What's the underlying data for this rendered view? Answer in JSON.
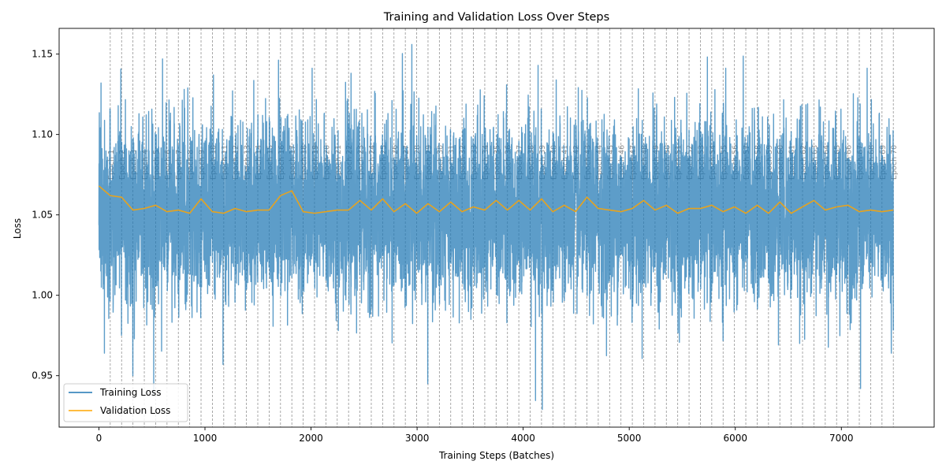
{
  "chart_data": {
    "type": "line",
    "title": "Training and Validation Loss Over Steps",
    "xlabel": "Training Steps (Batches)",
    "ylabel": "Loss",
    "xlim": [
      -375,
      7875
    ],
    "ylim": [
      0.918,
      1.166
    ],
    "x_ticks": [
      0,
      1000,
      2000,
      3000,
      4000,
      5000,
      6000,
      7000
    ],
    "y_ticks": [
      0.95,
      1.0,
      1.05,
      1.1,
      1.15
    ],
    "y_tick_labels": [
      "0.95",
      "1.00",
      "1.05",
      "1.10",
      "1.15"
    ],
    "legend_position": "lower-left",
    "grid": false,
    "epoch_boundaries": {
      "steps_per_epoch": 107,
      "count": 70,
      "label_prefix": "Epoch",
      "line_color": "#808080"
    },
    "series": [
      {
        "name": "Training Loss",
        "color": "#1f77b4",
        "kind": "noisy-line",
        "x_range": [
          0,
          7490
        ],
        "points_approx": 7490,
        "mean": 1.052,
        "min": 0.929,
        "max": 1.156,
        "notable_points": [
          {
            "x": 20,
            "y": 1.132
          },
          {
            "x": 40,
            "y": 1.004
          },
          {
            "x": 320,
            "y": 0.95
          },
          {
            "x": 600,
            "y": 1.147
          },
          {
            "x": 1080,
            "y": 1.137
          },
          {
            "x": 1170,
            "y": 0.957
          },
          {
            "x": 2950,
            "y": 1.156
          },
          {
            "x": 3100,
            "y": 0.945
          },
          {
            "x": 4140,
            "y": 1.143
          },
          {
            "x": 4180,
            "y": 0.929
          },
          {
            "x": 7180,
            "y": 0.942
          },
          {
            "x": 7470,
            "y": 0.964
          }
        ]
      },
      {
        "name": "Validation Loss",
        "color": "#ffa500",
        "kind": "per-epoch",
        "x": [
          0,
          107,
          214,
          321,
          428,
          535,
          642,
          749,
          856,
          963,
          1070,
          1177,
          1284,
          1391,
          1498,
          1605,
          1712,
          1819,
          1926,
          2033,
          2140,
          2247,
          2354,
          2461,
          2568,
          2675,
          2782,
          2889,
          2996,
          3103,
          3210,
          3317,
          3424,
          3531,
          3638,
          3745,
          3852,
          3959,
          4066,
          4173,
          4280,
          4387,
          4494,
          4601,
          4708,
          4815,
          4922,
          5029,
          5136,
          5243,
          5350,
          5457,
          5564,
          5671,
          5778,
          5885,
          5992,
          6099,
          6206,
          6313,
          6420,
          6527,
          6634,
          6741,
          6848,
          6955,
          7062,
          7169,
          7276,
          7383,
          7490
        ],
        "values": [
          1.068,
          1.062,
          1.061,
          1.053,
          1.054,
          1.056,
          1.052,
          1.053,
          1.051,
          1.06,
          1.052,
          1.051,
          1.054,
          1.052,
          1.053,
          1.053,
          1.062,
          1.065,
          1.052,
          1.051,
          1.052,
          1.053,
          1.053,
          1.059,
          1.053,
          1.06,
          1.052,
          1.057,
          1.051,
          1.057,
          1.052,
          1.058,
          1.052,
          1.055,
          1.053,
          1.059,
          1.053,
          1.059,
          1.053,
          1.06,
          1.052,
          1.056,
          1.052,
          1.061,
          1.054,
          1.053,
          1.052,
          1.054,
          1.059,
          1.053,
          1.056,
          1.051,
          1.054,
          1.054,
          1.056,
          1.052,
          1.055,
          1.051,
          1.056,
          1.051,
          1.058,
          1.051,
          1.055,
          1.059,
          1.053,
          1.055,
          1.056,
          1.052,
          1.053,
          1.052,
          1.053
        ]
      }
    ]
  }
}
